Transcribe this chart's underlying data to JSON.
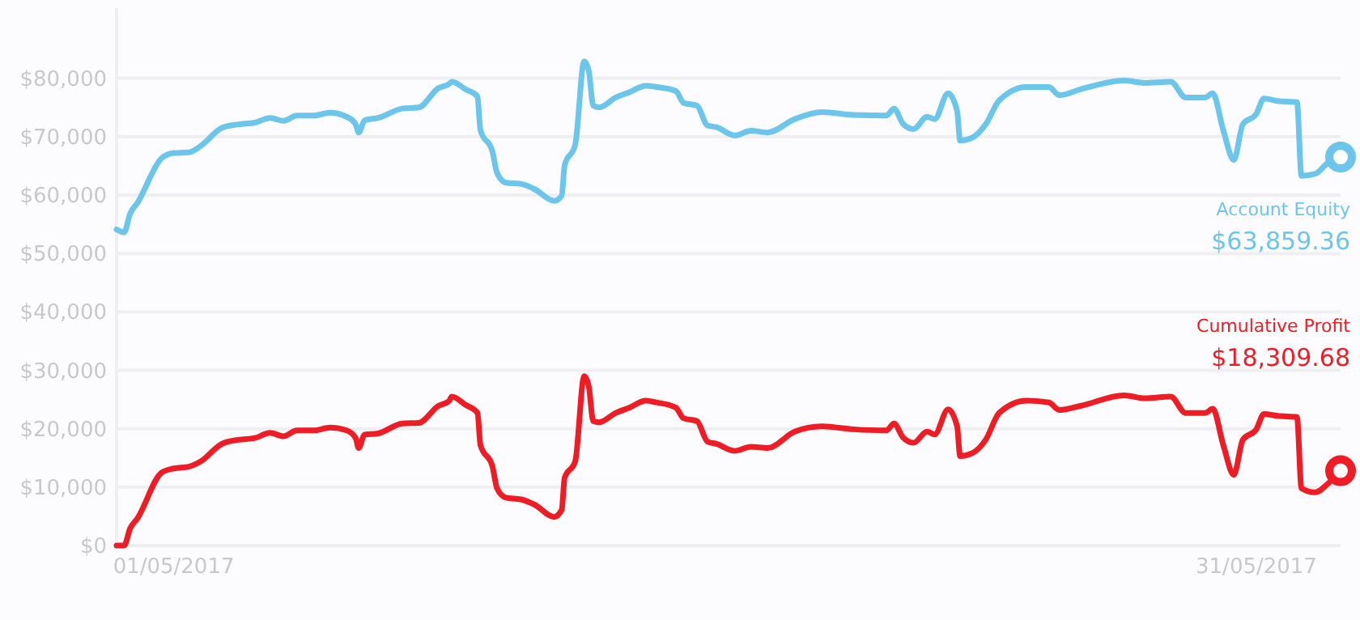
{
  "chart_data": {
    "type": "line",
    "x": [
      "2017-04-29T10:00",
      "2017-04-29T15:00",
      "2017-04-29T19:00",
      "2017-04-30T00:00",
      "2017-04-30T16:00",
      "2017-05-01T00:00",
      "2017-05-01T10:00",
      "2017-05-01T18:00",
      "2017-05-02T08:00",
      "2017-05-02T19:00",
      "2017-05-03T06:00",
      "2017-05-03T16:00",
      "2017-05-04T01:00",
      "2017-05-04T10:00",
      "2017-05-04T21:00",
      "2017-05-05T08:00",
      "2017-05-05T19:00",
      "2017-05-06T01:00",
      "2017-05-06T03:00",
      "2017-05-06T07:00",
      "2017-05-06T16:00",
      "2017-05-07T08:00",
      "2017-05-07T19:00",
      "2017-05-08T08:00",
      "2017-05-08T15:00",
      "2017-05-08T17:00",
      "2017-05-09T02:00",
      "2017-05-09T10:00",
      "2017-05-09T12:00",
      "2017-05-09T20:00",
      "2017-05-09T23:00",
      "2017-05-10T05:00",
      "2017-05-10T15:00",
      "2017-05-11T00:00",
      "2017-05-11T13:00",
      "2017-05-11T18:00",
      "2017-05-11T20:00",
      "2017-05-12T03:00",
      "2017-05-12T09:00",
      "2017-05-12T12:00",
      "2017-05-12T15:00",
      "2017-05-12T19:00",
      "2017-05-13T06:00",
      "2017-05-13T15:00",
      "2017-05-14T02:00",
      "2017-05-14T09:00",
      "2017-05-14T22:00",
      "2017-05-15T03:00",
      "2017-05-15T12:00",
      "2017-05-15T19:00",
      "2017-05-16T01:00",
      "2017-05-16T13:00",
      "2017-05-17T00:00",
      "2017-05-17T11:00",
      "2017-05-18T05:00",
      "2017-05-18T23:00",
      "2017-05-19T20:00",
      "2017-05-20T18:00",
      "2017-05-20T23:00",
      "2017-05-21T05:00",
      "2017-05-21T12:00",
      "2017-05-21T21:00",
      "2017-05-22T02:00",
      "2017-05-22T11:00",
      "2017-05-22T17:00",
      "2017-05-22T19:00",
      "2017-05-23T03:00",
      "2017-05-23T12:00",
      "2017-05-23T21:00",
      "2017-05-24T15:00",
      "2017-05-25T06:00",
      "2017-05-25T13:00",
      "2017-05-26T03:00",
      "2017-05-27T08:00",
      "2017-05-27T22:00",
      "2017-05-28T15:00",
      "2017-05-29T01:00",
      "2017-05-29T14:00",
      "2017-05-29T19:00",
      "2017-05-30T02:00",
      "2017-05-30T09:00",
      "2017-05-30T15:00",
      "2017-05-31T00:00",
      "2017-05-31T05:00",
      "2017-05-31T14:00",
      "2017-06-01T03:00",
      "2017-06-01T06:00",
      "2017-06-01T15:00",
      "2017-06-02T00:00",
      "2017-06-02T08:00"
    ],
    "series": [
      {
        "name": "Account Equity",
        "color": "#6cc5ea",
        "values": [
          54100,
          53600,
          56800,
          58700,
          66300,
          67200,
          67300,
          68400,
          71500,
          72100,
          72400,
          73200,
          72700,
          73600,
          73600,
          74100,
          73400,
          72100,
          70700,
          72800,
          73200,
          74800,
          75000,
          78300,
          79000,
          79400,
          78100,
          76900,
          71100,
          67400,
          63800,
          62100,
          61900,
          61000,
          59000,
          59900,
          65100,
          68600,
          82900,
          81300,
          75300,
          75000,
          76700,
          77600,
          78700,
          78500,
          77800,
          75800,
          75300,
          71900,
          71600,
          70200,
          71000,
          70700,
          73000,
          74200,
          73700,
          73600,
          74800,
          72200,
          71300,
          73400,
          73000,
          77400,
          74400,
          69300,
          69800,
          72100,
          76200,
          78500,
          78500,
          77100,
          78100,
          79600,
          79200,
          79400,
          76700,
          76700,
          77400,
          71100,
          66000,
          72100,
          73900,
          76500,
          76100,
          75900,
          63300,
          63600,
          65600,
          66500
        ]
      },
      {
        "name": "Cumulative Profit",
        "color": "#ee1c24",
        "values": [
          0,
          0,
          2900,
          4700,
          12500,
          13200,
          13500,
          14400,
          17400,
          18100,
          18400,
          19300,
          18700,
          19700,
          19700,
          20200,
          19700,
          18400,
          16700,
          19000,
          19200,
          20900,
          21000,
          23900,
          24700,
          25500,
          24100,
          22700,
          17200,
          13500,
          9800,
          8200,
          7900,
          7000,
          4900,
          6100,
          11600,
          14400,
          29000,
          27300,
          21300,
          21100,
          22700,
          23600,
          24800,
          24500,
          23600,
          21800,
          21300,
          17800,
          17400,
          16200,
          16900,
          16700,
          19500,
          20400,
          19900,
          19700,
          20900,
          18500,
          17600,
          19500,
          19000,
          23300,
          20400,
          15300,
          15800,
          18100,
          22700,
          24800,
          24500,
          23200,
          23900,
          25700,
          25200,
          25500,
          22700,
          22700,
          23400,
          17200,
          12100,
          18100,
          19900,
          22500,
          22200,
          22000,
          9800,
          9100,
          10700,
          12800
        ]
      }
    ],
    "annotations": [
      "$63,859.36",
      "$18,309.68"
    ],
    "xlim": [
      "2017-04-29T10:00",
      "2017-06-02T08:00"
    ],
    "xticks": [
      {
        "value": "2017-05-01",
        "label": "01/05/2017"
      },
      {
        "value": "2017-05-31",
        "label": "31/05/2017"
      }
    ],
    "ylim": [
      0,
      92000
    ],
    "yticks": [
      {
        "value": 0,
        "label": "$0"
      },
      {
        "value": 10000,
        "label": "$10,000"
      },
      {
        "value": 20000,
        "label": "$20,000"
      },
      {
        "value": 30000,
        "label": "$30,000"
      },
      {
        "value": 40000,
        "label": "$40,000"
      },
      {
        "value": 50000,
        "label": "$50,000"
      },
      {
        "value": 60000,
        "label": "$60,000"
      },
      {
        "value": 70000,
        "label": "$70,000"
      },
      {
        "value": 80000,
        "label": "$80,000"
      }
    ],
    "grid": "y"
  }
}
